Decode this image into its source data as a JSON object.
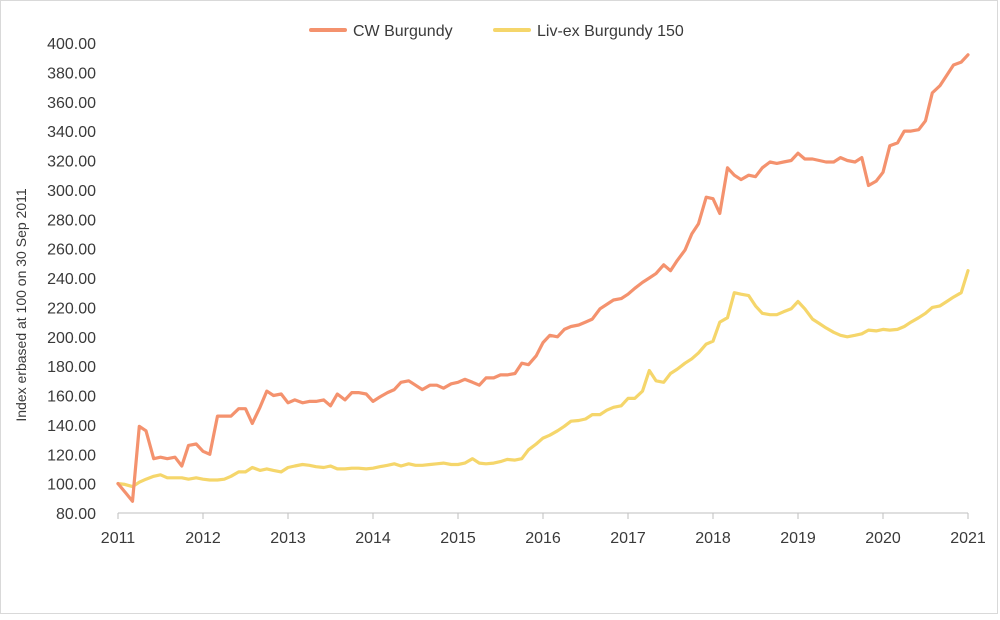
{
  "colors": {
    "series_1": "#F4926E",
    "series_2": "#F5D66B",
    "axis": "#bfbfbf"
  },
  "chart_data": {
    "type": "line",
    "title": "",
    "xlabel": "",
    "ylabel": "Index erbased at 100 on 30 Sep 2011",
    "x_ticks": [
      "2011",
      "2012",
      "2013",
      "2014",
      "2015",
      "2016",
      "2017",
      "2018",
      "2019",
      "2020",
      "2021"
    ],
    "y_ticks": [
      "80.00",
      "100.00",
      "120.00",
      "140.00",
      "160.00",
      "180.00",
      "200.00",
      "220.00",
      "240.00",
      "260.00",
      "280.00",
      "300.00",
      "320.00",
      "340.00",
      "360.00",
      "380.00",
      "400.00"
    ],
    "ylim": [
      80,
      400
    ],
    "xlim": [
      2011.0,
      2021.0
    ],
    "grid": false,
    "legend_position": "top-center",
    "series": [
      {
        "name": "CW Burgundy",
        "points": [
          [
            2011.0,
            100
          ],
          [
            2011.1,
            93
          ],
          [
            2011.17,
            88
          ],
          [
            2011.25,
            139
          ],
          [
            2011.33,
            136
          ],
          [
            2011.42,
            117
          ],
          [
            2011.5,
            118
          ],
          [
            2011.58,
            117
          ],
          [
            2011.67,
            118
          ],
          [
            2011.75,
            112
          ],
          [
            2011.83,
            126
          ],
          [
            2011.92,
            127
          ],
          [
            2012.0,
            122
          ],
          [
            2012.08,
            120
          ],
          [
            2012.17,
            146
          ],
          [
            2012.25,
            146
          ],
          [
            2012.33,
            146
          ],
          [
            2012.42,
            151
          ],
          [
            2012.5,
            151
          ],
          [
            2012.58,
            141
          ],
          [
            2012.67,
            152
          ],
          [
            2012.75,
            163
          ],
          [
            2012.83,
            160
          ],
          [
            2012.92,
            161
          ],
          [
            2013.0,
            155
          ],
          [
            2013.08,
            157
          ],
          [
            2013.17,
            155
          ],
          [
            2013.25,
            156
          ],
          [
            2013.33,
            156
          ],
          [
            2013.42,
            157
          ],
          [
            2013.5,
            153
          ],
          [
            2013.58,
            161
          ],
          [
            2013.67,
            157
          ],
          [
            2013.75,
            162
          ],
          [
            2013.83,
            162
          ],
          [
            2013.92,
            161
          ],
          [
            2014.0,
            156
          ],
          [
            2014.08,
            159
          ],
          [
            2014.17,
            162
          ],
          [
            2014.25,
            164
          ],
          [
            2014.33,
            169
          ],
          [
            2014.42,
            170
          ],
          [
            2014.5,
            167
          ],
          [
            2014.58,
            164
          ],
          [
            2014.67,
            167
          ],
          [
            2014.75,
            167
          ],
          [
            2014.83,
            165
          ],
          [
            2014.92,
            168
          ],
          [
            2015.0,
            169
          ],
          [
            2015.08,
            171
          ],
          [
            2015.17,
            169
          ],
          [
            2015.25,
            167
          ],
          [
            2015.33,
            172
          ],
          [
            2015.42,
            172
          ],
          [
            2015.5,
            174
          ],
          [
            2015.58,
            174
          ],
          [
            2015.67,
            175
          ],
          [
            2015.75,
            182
          ],
          [
            2015.83,
            181
          ],
          [
            2015.92,
            187
          ],
          [
            2016.0,
            196
          ],
          [
            2016.08,
            201
          ],
          [
            2016.17,
            200
          ],
          [
            2016.25,
            205
          ],
          [
            2016.33,
            207
          ],
          [
            2016.42,
            208
          ],
          [
            2016.5,
            210
          ],
          [
            2016.58,
            212
          ],
          [
            2016.67,
            219
          ],
          [
            2016.75,
            222
          ],
          [
            2016.83,
            225
          ],
          [
            2016.92,
            226
          ],
          [
            2017.0,
            229
          ],
          [
            2017.08,
            233
          ],
          [
            2017.17,
            237
          ],
          [
            2017.25,
            240
          ],
          [
            2017.33,
            243
          ],
          [
            2017.42,
            249
          ],
          [
            2017.5,
            245
          ],
          [
            2017.58,
            252
          ],
          [
            2017.67,
            259
          ],
          [
            2017.75,
            270
          ],
          [
            2017.83,
            277
          ],
          [
            2017.92,
            295
          ],
          [
            2018.0,
            294
          ],
          [
            2018.08,
            284
          ],
          [
            2018.17,
            315
          ],
          [
            2018.25,
            310
          ],
          [
            2018.33,
            307
          ],
          [
            2018.42,
            310
          ],
          [
            2018.5,
            309
          ],
          [
            2018.58,
            315
          ],
          [
            2018.67,
            319
          ],
          [
            2018.75,
            318
          ],
          [
            2018.83,
            319
          ],
          [
            2018.92,
            320
          ],
          [
            2019.0,
            325
          ],
          [
            2019.08,
            321
          ],
          [
            2019.17,
            321
          ],
          [
            2019.25,
            320
          ],
          [
            2019.33,
            319
          ],
          [
            2019.42,
            319
          ],
          [
            2019.5,
            322
          ],
          [
            2019.58,
            320
          ],
          [
            2019.67,
            319
          ],
          [
            2019.75,
            322
          ],
          [
            2019.83,
            303
          ],
          [
            2019.92,
            306
          ],
          [
            2020.0,
            312
          ],
          [
            2020.08,
            330
          ],
          [
            2020.17,
            332
          ],
          [
            2020.25,
            340
          ],
          [
            2020.33,
            340
          ],
          [
            2020.42,
            341
          ],
          [
            2020.5,
            347
          ],
          [
            2020.58,
            366
          ],
          [
            2020.67,
            371
          ],
          [
            2020.75,
            378
          ],
          [
            2020.83,
            385
          ],
          [
            2020.92,
            387
          ],
          [
            2021.0,
            392
          ]
        ]
      },
      {
        "name": "Liv-ex Burgundy 150",
        "points": [
          [
            2011.0,
            100
          ],
          [
            2011.08,
            99.5
          ],
          [
            2011.17,
            98
          ],
          [
            2011.25,
            101
          ],
          [
            2011.33,
            103
          ],
          [
            2011.42,
            105
          ],
          [
            2011.5,
            106
          ],
          [
            2011.58,
            104
          ],
          [
            2011.67,
            104
          ],
          [
            2011.75,
            104
          ],
          [
            2011.83,
            103
          ],
          [
            2011.92,
            104
          ],
          [
            2012.0,
            103
          ],
          [
            2012.08,
            102.5
          ],
          [
            2012.17,
            102.5
          ],
          [
            2012.25,
            103
          ],
          [
            2012.33,
            105
          ],
          [
            2012.42,
            108
          ],
          [
            2012.5,
            108
          ],
          [
            2012.58,
            111
          ],
          [
            2012.67,
            109
          ],
          [
            2012.75,
            110
          ],
          [
            2012.83,
            109
          ],
          [
            2012.92,
            108
          ],
          [
            2013.0,
            111
          ],
          [
            2013.08,
            112
          ],
          [
            2013.17,
            113
          ],
          [
            2013.25,
            112.5
          ],
          [
            2013.33,
            111.5
          ],
          [
            2013.42,
            111
          ],
          [
            2013.5,
            112
          ],
          [
            2013.58,
            110
          ],
          [
            2013.67,
            110
          ],
          [
            2013.75,
            110.5
          ],
          [
            2013.83,
            110.5
          ],
          [
            2013.92,
            110
          ],
          [
            2014.0,
            110.5
          ],
          [
            2014.08,
            111.5
          ],
          [
            2014.17,
            112.5
          ],
          [
            2014.25,
            113.5
          ],
          [
            2014.33,
            112
          ],
          [
            2014.42,
            113.5
          ],
          [
            2014.5,
            112.5
          ],
          [
            2014.58,
            112.5
          ],
          [
            2014.67,
            113
          ],
          [
            2014.75,
            113.5
          ],
          [
            2014.83,
            114
          ],
          [
            2014.92,
            113
          ],
          [
            2015.0,
            113
          ],
          [
            2015.08,
            114
          ],
          [
            2015.17,
            117
          ],
          [
            2015.25,
            114
          ],
          [
            2015.33,
            113.5
          ],
          [
            2015.42,
            114
          ],
          [
            2015.5,
            115
          ],
          [
            2015.58,
            116.5
          ],
          [
            2015.67,
            116
          ],
          [
            2015.75,
            117
          ],
          [
            2015.83,
            123
          ],
          [
            2015.92,
            127
          ],
          [
            2016.0,
            131
          ],
          [
            2016.08,
            133
          ],
          [
            2016.17,
            136
          ],
          [
            2016.25,
            139
          ],
          [
            2016.33,
            142.5
          ],
          [
            2016.42,
            143
          ],
          [
            2016.5,
            144
          ],
          [
            2016.58,
            147
          ],
          [
            2016.67,
            147
          ],
          [
            2016.75,
            150
          ],
          [
            2016.83,
            152
          ],
          [
            2016.92,
            153
          ],
          [
            2017.0,
            158
          ],
          [
            2017.08,
            158
          ],
          [
            2017.17,
            163
          ],
          [
            2017.25,
            177
          ],
          [
            2017.33,
            170
          ],
          [
            2017.42,
            169
          ],
          [
            2017.5,
            175
          ],
          [
            2017.58,
            178
          ],
          [
            2017.67,
            182
          ],
          [
            2017.75,
            185
          ],
          [
            2017.83,
            189
          ],
          [
            2017.92,
            195
          ],
          [
            2018.0,
            197
          ],
          [
            2018.08,
            210
          ],
          [
            2018.17,
            213
          ],
          [
            2018.25,
            230
          ],
          [
            2018.33,
            229
          ],
          [
            2018.42,
            228
          ],
          [
            2018.5,
            221
          ],
          [
            2018.58,
            216
          ],
          [
            2018.67,
            215
          ],
          [
            2018.75,
            215
          ],
          [
            2018.83,
            217
          ],
          [
            2018.92,
            219
          ],
          [
            2019.0,
            224
          ],
          [
            2019.08,
            219
          ],
          [
            2019.17,
            212
          ],
          [
            2019.25,
            209
          ],
          [
            2019.33,
            206
          ],
          [
            2019.42,
            203
          ],
          [
            2019.5,
            201
          ],
          [
            2019.58,
            200
          ],
          [
            2019.67,
            201
          ],
          [
            2019.75,
            202
          ],
          [
            2019.83,
            204.5
          ],
          [
            2019.92,
            204
          ],
          [
            2020.0,
            205
          ],
          [
            2020.08,
            204.5
          ],
          [
            2020.17,
            205
          ],
          [
            2020.25,
            207
          ],
          [
            2020.33,
            210
          ],
          [
            2020.42,
            213
          ],
          [
            2020.5,
            216
          ],
          [
            2020.58,
            220
          ],
          [
            2020.67,
            221
          ],
          [
            2020.75,
            224
          ],
          [
            2020.83,
            227
          ],
          [
            2020.92,
            230
          ],
          [
            2021.0,
            245
          ]
        ]
      }
    ]
  }
}
